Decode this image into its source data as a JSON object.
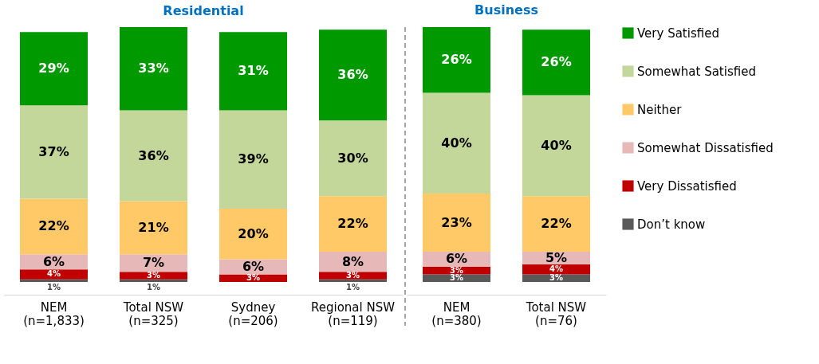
{
  "chart_data": [
    {
      "type": "bar",
      "stacked": true,
      "title": "Residential",
      "categories": [
        "NEM\n(n=1,833)",
        "Total NSW\n(n=325)",
        "Sydney\n(n=206)",
        "Regional NSW\n(n=119)"
      ],
      "legend": "right",
      "series": [
        {
          "name": "Don’t know",
          "color": "#595959",
          "values": [
            1,
            1,
            null,
            1
          ],
          "value_labels": [
            "1%",
            "1%",
            null,
            "1%"
          ]
        },
        {
          "name": "Very Dissatisfied",
          "color": "#c00000",
          "values": [
            4,
            3,
            3,
            3
          ],
          "value_labels": [
            "4%",
            "3%",
            "3%",
            "3%"
          ]
        },
        {
          "name": "Somewhat Dissatisfied",
          "color": "#e6b9b8",
          "values": [
            6,
            7,
            6,
            8
          ],
          "value_labels": [
            "6%",
            "7%",
            "6%",
            "8%"
          ]
        },
        {
          "name": "Neither",
          "color": "#ffc967",
          "values": [
            22,
            21,
            20,
            22
          ],
          "value_labels": [
            "22%",
            "21%",
            "20%",
            "22%"
          ]
        },
        {
          "name": "Somewhat Satisfied",
          "color": "#c4d79b",
          "values": [
            37,
            36,
            39,
            30
          ],
          "value_labels": [
            "37%",
            "36%",
            "39%",
            "30%"
          ]
        },
        {
          "name": "Very Satisfied",
          "color": "#009a00",
          "values": [
            29,
            33,
            31,
            36
          ],
          "value_labels": [
            "29%",
            "33%",
            "31%",
            "36%"
          ]
        }
      ]
    },
    {
      "type": "bar",
      "stacked": true,
      "title": "Business",
      "categories": [
        "NEM\n(n=380)",
        "Total NSW\n(n=76)"
      ],
      "legend": "right",
      "series": [
        {
          "name": "Don’t know",
          "color": "#595959",
          "values": [
            3,
            3
          ],
          "value_labels": [
            "3%",
            "3%"
          ]
        },
        {
          "name": "Very Dissatisfied",
          "color": "#c00000",
          "values": [
            3,
            4
          ],
          "value_labels": [
            "3%",
            "4%"
          ]
        },
        {
          "name": "Somewhat Dissatisfied",
          "color": "#e6b9b8",
          "values": [
            6,
            5
          ],
          "value_labels": [
            "6%",
            "5%"
          ]
        },
        {
          "name": "Neither",
          "color": "#ffc967",
          "values": [
            23,
            22
          ],
          "value_labels": [
            "23%",
            "22%"
          ]
        },
        {
          "name": "Somewhat Satisfied",
          "color": "#c4d79b",
          "values": [
            40,
            40
          ],
          "value_labels": [
            "40%",
            "40%"
          ]
        },
        {
          "name": "Very Satisfied",
          "color": "#009a00",
          "values": [
            26,
            26
          ],
          "value_labels": [
            "26%",
            "26%"
          ]
        }
      ]
    }
  ]
}
